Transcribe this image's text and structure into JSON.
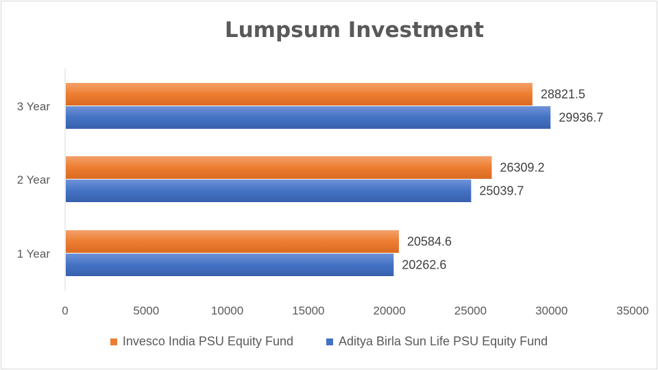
{
  "chart_data": {
    "type": "bar",
    "orientation": "horizontal",
    "title": "Lumpsum Investment",
    "categories": [
      "1 Year",
      "2 Year",
      "3 Year"
    ],
    "series": [
      {
        "name": "Invesco India PSU Equity Fund",
        "color": "#ED7D31",
        "values": [
          20584.6,
          26309.2,
          28821.5
        ]
      },
      {
        "name": "Aditya Birla Sun Life PSU Equity Fund",
        "color": "#4472C4",
        "values": [
          20262.6,
          25039.7,
          29936.7
        ]
      }
    ],
    "value_labels": [
      [
        "20584.6",
        "26309.2",
        "28821.5"
      ],
      [
        "20262.6",
        "25039.7",
        "29936.7"
      ]
    ],
    "xlim": [
      0,
      35000
    ],
    "xticks": [
      "0",
      "5000",
      "10000",
      "15000",
      "20000",
      "25000",
      "30000",
      "35000"
    ],
    "legend_position": "bottom",
    "grid": false
  }
}
